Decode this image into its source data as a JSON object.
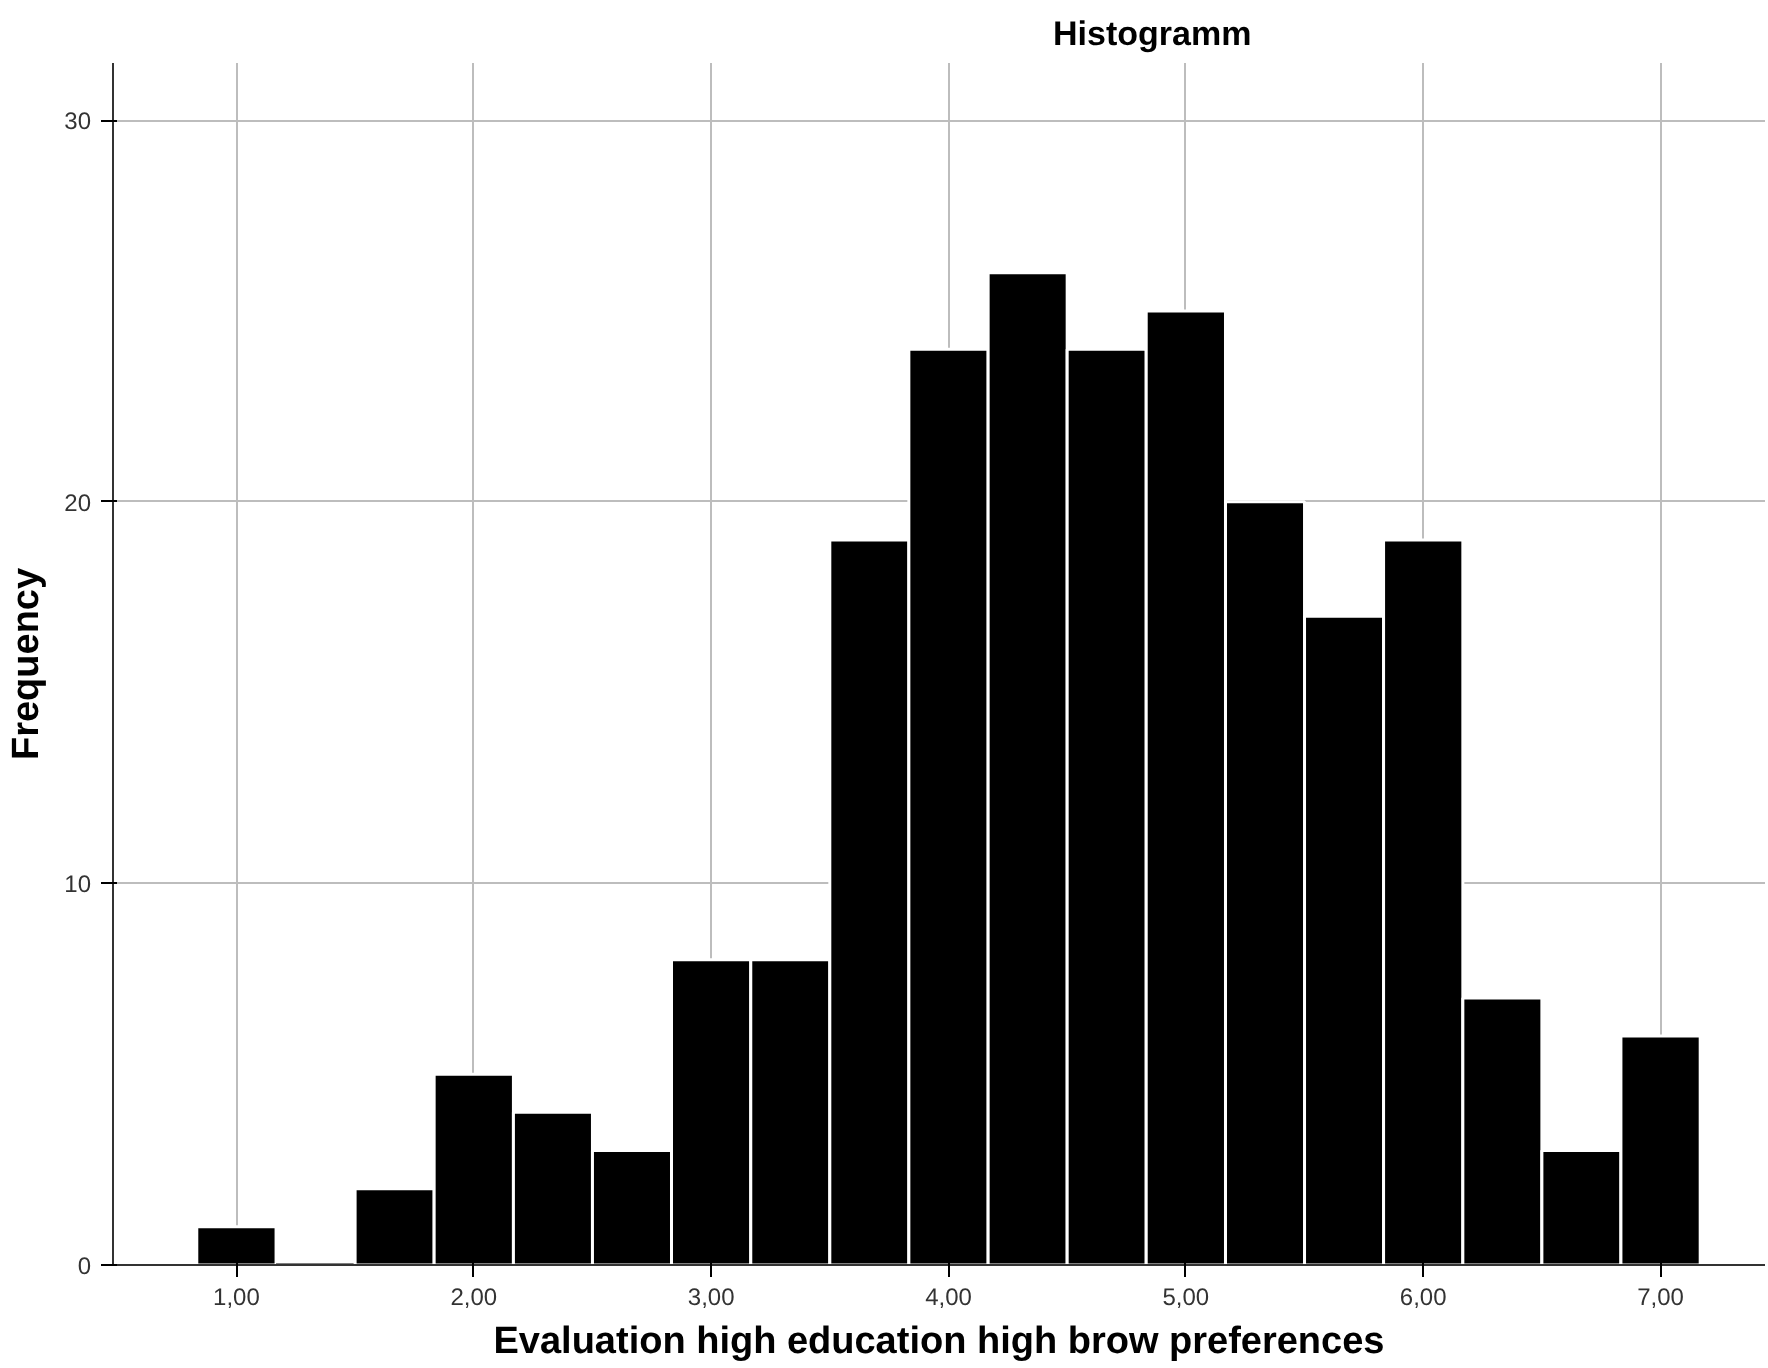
{
  "chart_data": {
    "type": "histogram",
    "title": "Histogramm",
    "xlabel": "Evaluation high education high brow preferences",
    "ylabel": "Frequency",
    "bins": [
      0.833,
      1.167,
      1.5,
      1.833,
      2.167,
      2.5,
      2.833,
      3.167,
      3.5,
      3.833,
      4.167,
      4.5,
      4.833,
      5.167,
      5.5,
      5.833,
      6.167,
      6.5,
      6.833,
      7.167
    ],
    "values": [
      1,
      0,
      2,
      5,
      4,
      3,
      8,
      8,
      19,
      24,
      26,
      24,
      25,
      20,
      17,
      19,
      7,
      3,
      6
    ],
    "color": "#000000",
    "xlim": [
      0.48,
      7.44
    ],
    "ylim": [
      0,
      31.5
    ],
    "xticks": [
      {
        "value": 1,
        "label": "1,00"
      },
      {
        "value": 2,
        "label": "2,00"
      },
      {
        "value": 3,
        "label": "3,00"
      },
      {
        "value": 4,
        "label": "4,00"
      },
      {
        "value": 5,
        "label": "5,00"
      },
      {
        "value": 6,
        "label": "6,00"
      },
      {
        "value": 7,
        "label": "7,00"
      }
    ],
    "yticks": [
      0,
      10,
      20,
      30
    ],
    "grid": true
  }
}
